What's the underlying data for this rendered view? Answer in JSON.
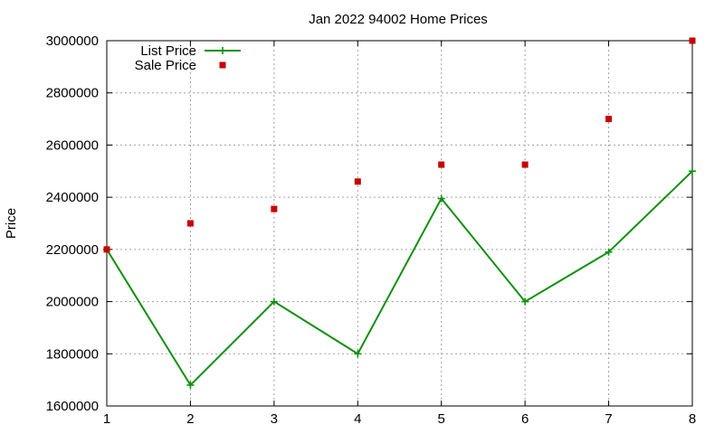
{
  "chart_data": {
    "type": "line",
    "title": "Jan 2022 94002 Home Prices",
    "xlabel": "",
    "ylabel": "Price",
    "xlim": [
      1,
      8
    ],
    "ylim": [
      1600000,
      3000000
    ],
    "x_ticks": [
      1,
      2,
      3,
      4,
      5,
      6,
      7,
      8
    ],
    "y_ticks": [
      1600000,
      1800000,
      2000000,
      2200000,
      2400000,
      2600000,
      2800000,
      3000000
    ],
    "grid": true,
    "legend_position": "top-left",
    "series": [
      {
        "name": "List Price",
        "type": "line",
        "marker": "plus",
        "color": "#109010",
        "x": [
          1,
          2,
          3,
          4,
          5,
          6,
          7,
          8
        ],
        "y": [
          2200000,
          1680000,
          2000000,
          1800000,
          2395000,
          2000000,
          2190000,
          2500000
        ]
      },
      {
        "name": "Sale Price",
        "type": "scatter",
        "marker": "square",
        "color": "#c80000",
        "x": [
          1,
          2,
          3,
          4,
          5,
          6,
          7,
          8
        ],
        "y": [
          2200000,
          2300000,
          2355000,
          2460000,
          2525000,
          2525000,
          2700000,
          3000000
        ]
      }
    ]
  }
}
